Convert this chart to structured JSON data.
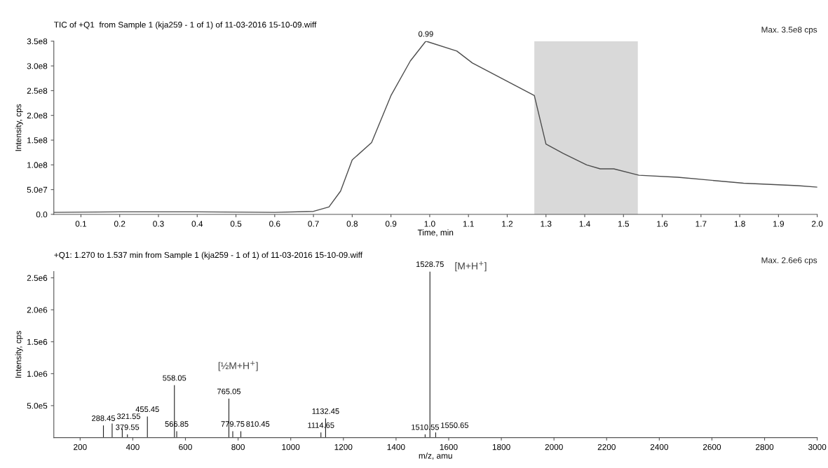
{
  "chart_data": [
    {
      "type": "line",
      "title": "TIC of +Q1  from Sample 1 (kja259 - 1 of 1) of 11-03-2016 15-10-09.wiff",
      "xlabel": "Time, min",
      "ylabel": "Intensity, cps",
      "x": [
        0.03,
        0.2,
        0.4,
        0.6,
        0.7,
        0.74,
        0.77,
        0.8,
        0.85,
        0.9,
        0.95,
        0.99,
        1.07,
        1.11,
        1.27,
        1.3,
        1.345,
        1.405,
        1.44,
        1.475,
        1.54,
        1.64,
        1.81,
        1.95,
        2.0
      ],
      "series": [
        {
          "color": "#4d4d4d",
          "values": [
            4000000,
            5000000,
            5000000,
            4000000,
            6000000,
            15000000,
            47000000,
            110000000,
            145000000,
            240000000,
            310000000,
            350000000,
            330000000,
            306000000,
            240000000,
            142000000,
            123000000,
            100000000,
            92000000,
            92000000,
            79000000,
            75000000,
            63000000,
            58000000,
            55000000
          ]
        }
      ],
      "xlim": [
        0.03,
        2.0
      ],
      "ylim": [
        0,
        350000000
      ],
      "xticks": [
        0.1,
        0.2,
        0.3,
        0.4,
        0.5,
        0.6,
        0.7,
        0.8,
        0.9,
        {
          "value": 1,
          "label": "1.0"
        },
        1.1,
        1.2,
        1.3,
        1.4,
        1.5,
        1.6,
        1.7,
        1.8,
        1.9,
        {
          "value": 2,
          "label": "2.0"
        }
      ],
      "yticks": [
        {
          "value": 0,
          "label": "0.0"
        },
        {
          "value": 50000000,
          "label": "5.0e7"
        },
        {
          "value": 100000000,
          "label": "1.0e8"
        },
        {
          "value": 150000000,
          "label": "1.5e8"
        },
        {
          "value": 200000000,
          "label": "2.0e8"
        },
        {
          "value": 250000000,
          "label": "2.5e8"
        },
        {
          "value": 300000000,
          "label": "3.0e8"
        },
        {
          "value": 350000000,
          "label": "3.5e8"
        }
      ],
      "bands": [
        {
          "axis": "x",
          "from": 1.27,
          "to": 1.537,
          "color": "#d9d9d9"
        }
      ],
      "annotations": [
        "Max. 3.5e8 cps",
        {
          "text": "0.99",
          "x": 0.99,
          "y": 350000000
        }
      ],
      "grid": false,
      "legend": false,
      "marker": "none"
    },
    {
      "type": "bar",
      "title": "+Q1: 1.270 to 1.537 min from Sample 1 (kja259 - 1 of 1) of 11-03-2016 15-10-09.wiff",
      "xlabel": "m/z, amu",
      "ylabel": "Intensity, cps",
      "x": [
        288.45,
        321.55,
        360,
        379.55,
        455.45,
        558.05,
        566.85,
        765.05,
        779.75,
        810.45,
        1114.65,
        1132.45,
        1510.55,
        1528.75,
        1550.65
      ],
      "series": [
        {
          "color": "#222222",
          "values": [
            190000,
            220000,
            140000,
            50000,
            330000,
            820000,
            100000,
            610000,
            100000,
            100000,
            80000,
            300000,
            50000,
            2600000,
            80000
          ]
        }
      ],
      "xlim": [
        100,
        3000
      ],
      "ylim": [
        0,
        2600000
      ],
      "xticks": [
        200,
        400,
        600,
        800,
        1000,
        1200,
        1400,
        1600,
        1800,
        2000,
        2200,
        2400,
        2600,
        2800,
        3000
      ],
      "yticks": [
        {
          "value": 500000,
          "label": "5.0e5"
        },
        {
          "value": 1000000,
          "label": "1.0e6"
        },
        {
          "value": 1500000,
          "label": "1.5e6"
        },
        {
          "value": 2000000,
          "label": "2.0e6"
        },
        {
          "value": 2500000,
          "label": "2.5e6"
        }
      ],
      "annotations": [
        "Max. 2.6e6 cps",
        {
          "text": "288.45",
          "x": 288.45,
          "y": 190000
        },
        {
          "text": "321.55",
          "x": 321.55,
          "y": 220000
        },
        {
          "text": "379.55",
          "x": 379.55,
          "y": 50000
        },
        {
          "text": "455.45",
          "x": 455.45,
          "y": 330000
        },
        {
          "text": "558.05",
          "x": 558.05,
          "y": 820000
        },
        {
          "text": "566.85",
          "x": 566.85,
          "y": 100000
        },
        {
          "text": "765.05",
          "x": 765.05,
          "y": 610000
        },
        {
          "text": "779.75",
          "x": 779.75,
          "y": 100000
        },
        {
          "text": "810.45",
          "x": 810.45,
          "y": 100000
        },
        {
          "text": "1114.65",
          "x": 1114.65,
          "y": 80000
        },
        {
          "text": "1132.45",
          "x": 1132.45,
          "y": 300000
        },
        {
          "text": "1510.55",
          "x": 1510.55,
          "y": 50000
        },
        {
          "text": "1528.75",
          "x": 1528.75,
          "y": 2600000
        },
        {
          "text": "1550.65",
          "x": 1550.65,
          "y": 80000
        },
        "[½M+H$^{+}$]",
        "[M+H$^{+}$]"
      ],
      "grid": false,
      "legend": false
    }
  ]
}
